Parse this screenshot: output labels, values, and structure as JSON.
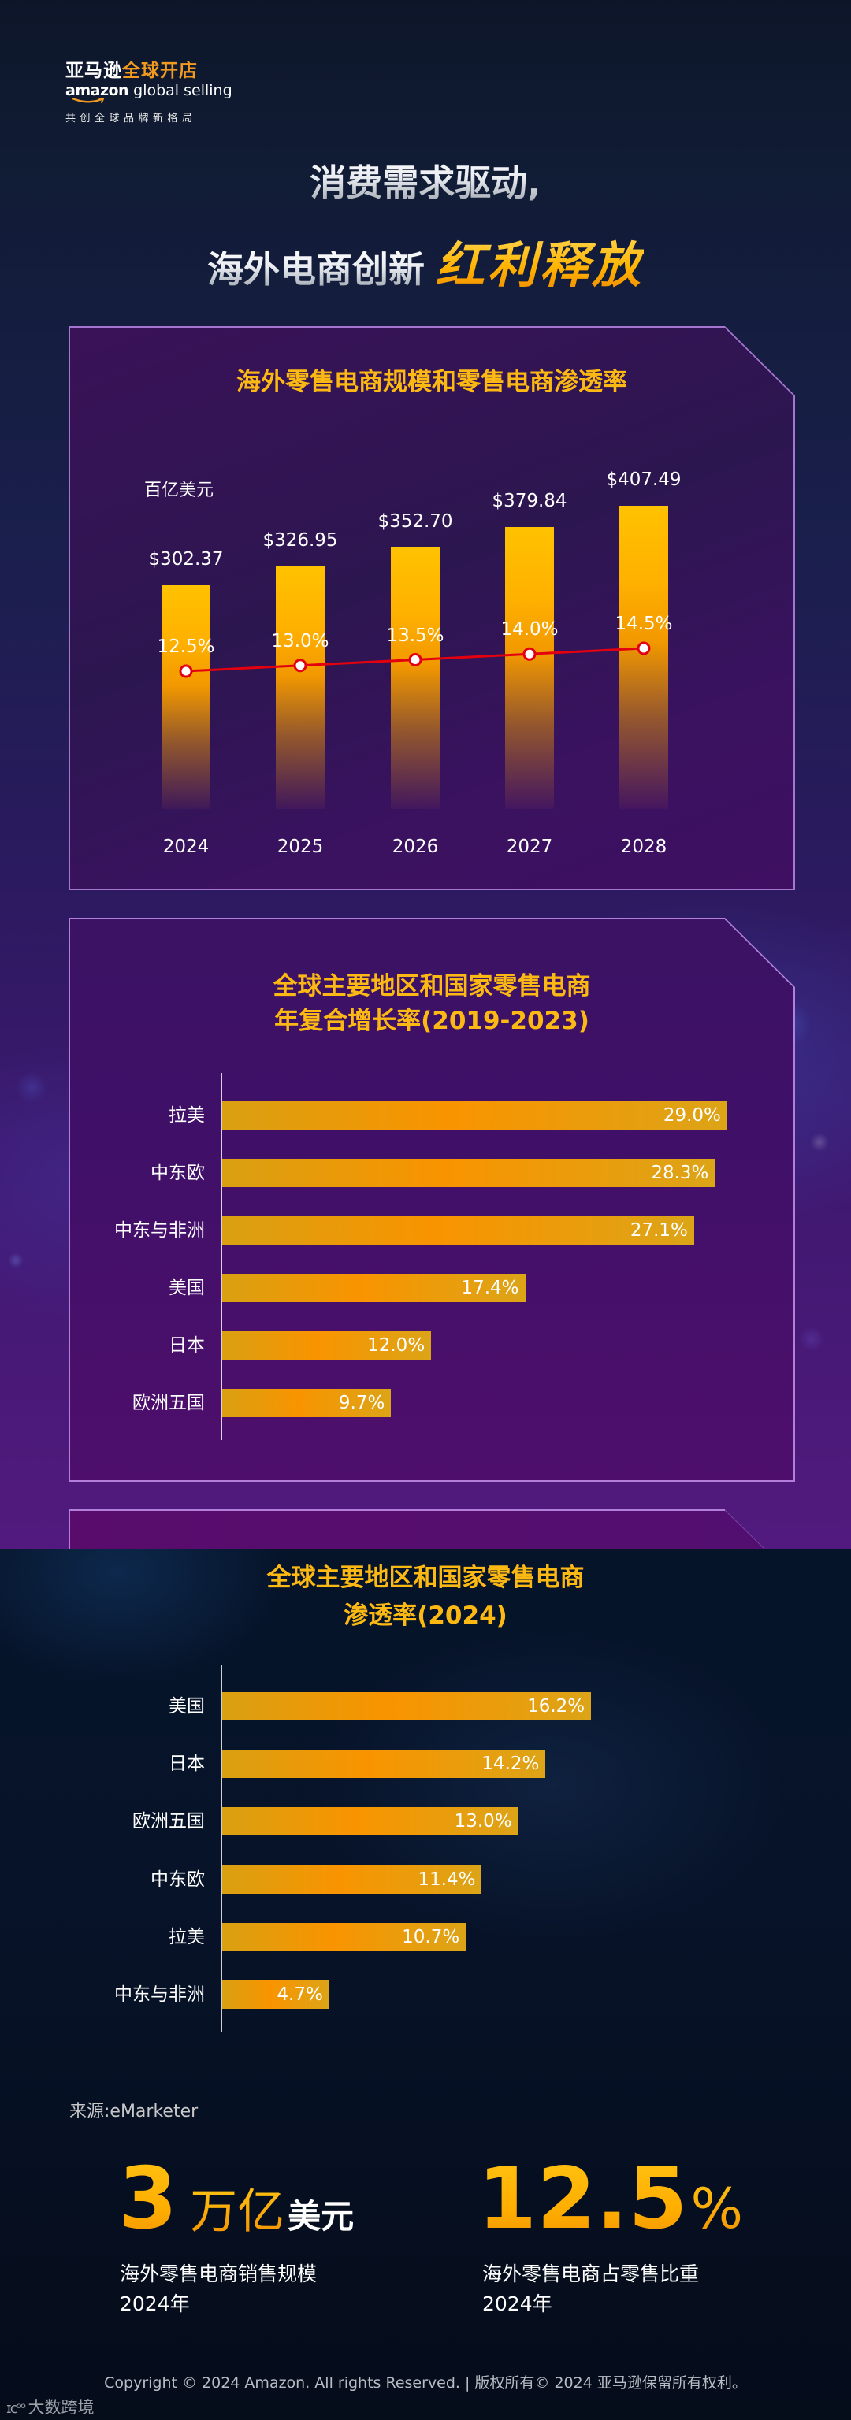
{
  "brand": {
    "logo_cn_white": "亚马逊",
    "logo_cn_orange": "全球开店",
    "logo_en_bold": "amazon",
    "logo_en_light": " global selling",
    "tagline": "共创全球品牌新格局"
  },
  "hero": {
    "line1": "消费需求驱动,",
    "line2_plain": "海外电商创新",
    "line2_accent": "红利释放"
  },
  "colors": {
    "accent_gold": "#fdb913",
    "bar_orange": "#f99400",
    "line_red": "#e3000f",
    "card_border": "#b27fdb"
  },
  "chart_data": [
    {
      "type": "bar+line",
      "title": "海外零售电商规模和零售电商渗透率",
      "unit_label": "百亿美元",
      "categories": [
        "2024",
        "2025",
        "2026",
        "2027",
        "2028"
      ],
      "series": [
        {
          "name": "海外零售电商规模(百亿美元)",
          "type": "bar",
          "values": [
            302.37,
            326.95,
            352.7,
            379.84,
            407.49
          ],
          "labels": [
            "$302.37",
            "$326.95",
            "$352.70",
            "$379.84",
            "$407.49"
          ]
        },
        {
          "name": "零售电商渗透率",
          "type": "line",
          "values": [
            12.5,
            13.0,
            13.5,
            14.0,
            14.5
          ],
          "labels": [
            "12.5%",
            "13.0%",
            "13.5%",
            "14.0%",
            "14.5%"
          ]
        }
      ],
      "xlabel": "",
      "ylabel": "百亿美元"
    },
    {
      "type": "bar",
      "orientation": "horizontal",
      "title_line1": "全球主要地区和国家零售电商",
      "title_line2": "年复合增长率(2019-2023)",
      "categories": [
        "拉美",
        "中东欧",
        "中东与非洲",
        "美国",
        "日本",
        "欧洲五国"
      ],
      "values": [
        29.0,
        28.3,
        27.1,
        17.4,
        12.0,
        9.7
      ],
      "labels": [
        "29.0%",
        "28.3%",
        "27.1%",
        "17.4%",
        "12.0%",
        "9.7%"
      ],
      "unit": "%"
    },
    {
      "type": "bar",
      "orientation": "horizontal",
      "title_line1": "全球主要地区和国家零售电商",
      "title_line2": "渗透率(2024)",
      "categories": [
        "美国",
        "日本",
        "欧洲五国",
        "中东欧",
        "拉美",
        "中东与非洲"
      ],
      "values": [
        16.2,
        14.2,
        13.0,
        11.4,
        10.7,
        4.7
      ],
      "labels": [
        "16.2%",
        "14.2%",
        "13.0%",
        "11.4%",
        "10.7%",
        "4.7%"
      ],
      "unit": "%"
    }
  ],
  "source": "来源:eMarketer",
  "stats": [
    {
      "number": "3",
      "unit_gold": "万亿",
      "unit_white": "美元",
      "desc_line1": "海外零售电商销售规模",
      "desc_line2": "2024年"
    },
    {
      "number": "12.5",
      "unit_pct": "%",
      "desc_line1": "海外零售电商占零售比重",
      "desc_line2": "2024年"
    }
  ],
  "footer": {
    "copyright": "Copyright © 2024 Amazon. All rights Reserved. | 版权所有© 2024 亚马逊保留所有权利。",
    "watermark_mark": "ɪᴄᵒᵒ",
    "watermark_text": "大数跨境"
  }
}
